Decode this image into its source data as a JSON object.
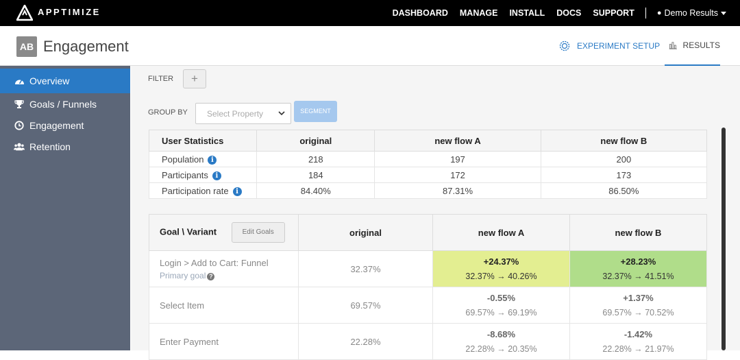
{
  "brand": "APPTIMIZE",
  "topnav": {
    "items": [
      "DASHBOARD",
      "MANAGE",
      "INSTALL",
      "DOCS",
      "SUPPORT"
    ],
    "account": "Demo Results"
  },
  "header": {
    "badge": "AB",
    "title": "Engagement",
    "setup_tab": "EXPERIMENT SETUP",
    "results_tab": "RESULTS"
  },
  "sidebar": {
    "items": [
      {
        "label": "Overview",
        "icon": "dashboard-icon"
      },
      {
        "label": "Goals / Funnels",
        "icon": "trophy-icon"
      },
      {
        "label": "Engagement",
        "icon": "clock-icon"
      },
      {
        "label": "Retention",
        "icon": "users-icon"
      }
    ]
  },
  "filters": {
    "filter_label": "FILTER",
    "add_label": "+",
    "group_label": "GROUP BY",
    "select_placeholder": "Select Property",
    "segment_label": "SEGMENT"
  },
  "stats": {
    "header": [
      "User Statistics",
      "original",
      "new flow A",
      "new flow B"
    ],
    "rows": [
      {
        "label": "Population",
        "values": [
          "218",
          "197",
          "200"
        ]
      },
      {
        "label": "Participants",
        "values": [
          "184",
          "172",
          "173"
        ]
      },
      {
        "label": "Participation rate",
        "values": [
          "84.40%",
          "87.31%",
          "86.50%"
        ]
      }
    ]
  },
  "goals": {
    "header": [
      "Goal \\ Variant",
      "original",
      "new flow A",
      "new flow B"
    ],
    "edit_label": "Edit Goals",
    "primary_label": "Primary goal",
    "rows": [
      {
        "label": "Login > Add to Cart: Funnel",
        "original": "32.37%",
        "a_delta": "+24.37%",
        "a_flow": "32.37% → 40.26%",
        "b_delta": "+28.23%",
        "b_flow": "32.37% → 41.51%"
      },
      {
        "label": "Select Item",
        "original": "69.57%",
        "a_delta": "-0.55%",
        "a_flow": "69.57% → 69.19%",
        "b_delta": "+1.37%",
        "b_flow": "69.57% → 70.52%"
      },
      {
        "label": "Enter Payment",
        "original": "22.28%",
        "a_delta": "-8.68%",
        "a_flow": "22.28% → 20.35%",
        "b_delta": "-1.42%",
        "b_flow": "22.28% → 21.97%"
      }
    ]
  },
  "colors": {
    "accent": "#2a7ac5",
    "sidebar": "#5c6678",
    "highlight_a": "#e3ee91",
    "highlight_b": "#b0dd8a"
  }
}
